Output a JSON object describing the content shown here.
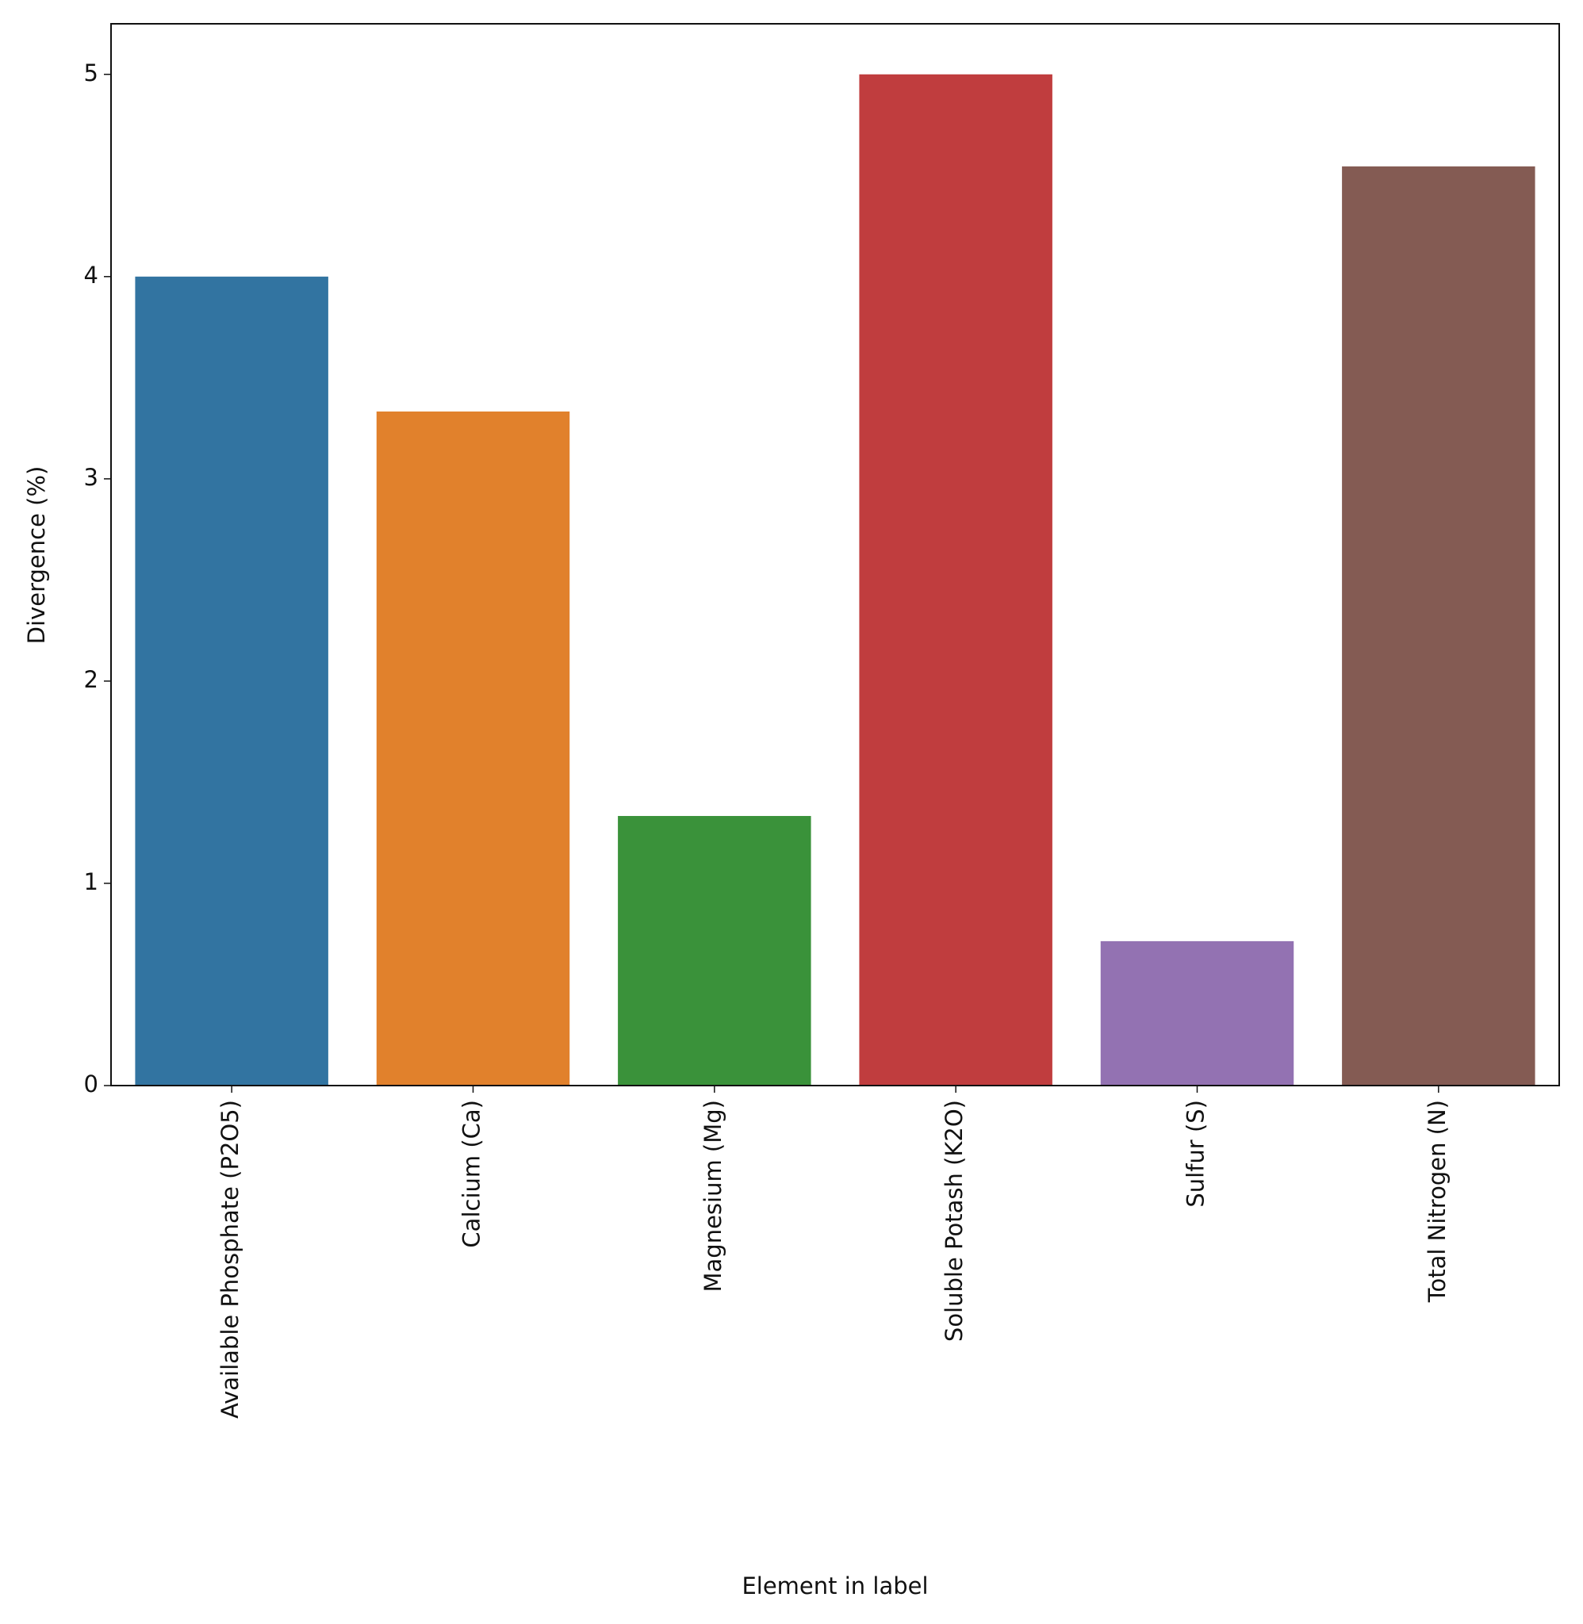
{
  "chart_data": {
    "type": "bar",
    "x_label": "Element in label",
    "y_label": "Divergence (%)",
    "categories": [
      "Available Phosphate (P2O5)",
      "Calcium (Ca)",
      "Magnesium (Mg)",
      "Soluble Potash (K2O)",
      "Sulfur (S)",
      "Total Nitrogen (N)"
    ],
    "values": [
      4.0,
      3.333,
      1.333,
      5.0,
      0.714,
      4.545
    ],
    "colors": [
      "#3274a1",
      "#e1812c",
      "#3a923a",
      "#c03d3e",
      "#9372b2",
      "#845b53"
    ],
    "ylim": [
      0,
      5.25
    ],
    "yticks": [
      0,
      1,
      2,
      3,
      4,
      5
    ],
    "grid": false
  }
}
